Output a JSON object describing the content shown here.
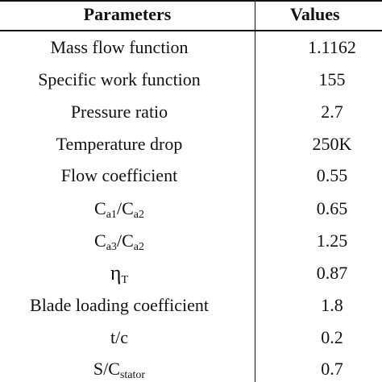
{
  "table": {
    "headers": {
      "parameters": "Parameters",
      "values": "Values"
    },
    "rows": [
      {
        "parameter": "Mass flow function",
        "value": "1.1162"
      },
      {
        "parameter": "Specific work function",
        "value": "155"
      },
      {
        "parameter": "Pressure ratio",
        "value": "2.7"
      },
      {
        "parameter": "Temperature drop",
        "value": "250K"
      },
      {
        "parameter": "Flow coefficient",
        "value": "0.55"
      },
      {
        "parameter_main_1": "C",
        "parameter_sub_1": "a1",
        "parameter_slash": "/",
        "parameter_main_2": "C",
        "parameter_sub_2": "a2",
        "value": "0.65"
      },
      {
        "parameter_main_1": "C",
        "parameter_sub_1": "a3",
        "parameter_slash": "/",
        "parameter_main_2": "C",
        "parameter_sub_2": "a2",
        "value": "1.25"
      },
      {
        "parameter_main_1": "η",
        "parameter_sub_1": "T",
        "value": "0.87"
      },
      {
        "parameter": "Blade loading coefficient",
        "value": "1.8"
      },
      {
        "parameter": "t/c",
        "value": "0.2"
      },
      {
        "parameter_main_1": "S/C",
        "parameter_sub_1": "stator",
        "value": "0.7"
      }
    ]
  }
}
